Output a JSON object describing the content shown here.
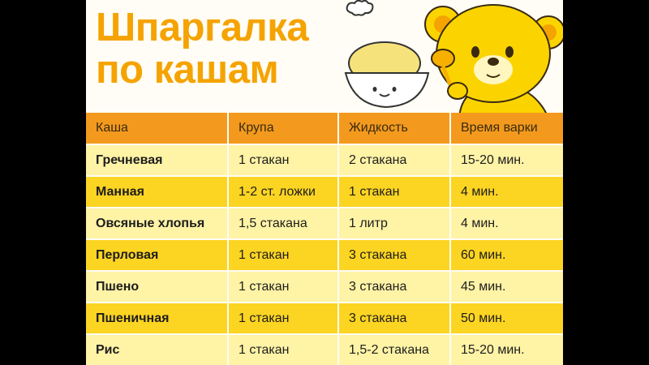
{
  "title": {
    "line1": "Шпаргалка",
    "line2": "по кашам"
  },
  "table": {
    "headers": [
      "Каша",
      "Крупа",
      "Жидкость",
      "Время варки"
    ],
    "rows": [
      [
        "Гречневая",
        "1 стакан",
        "2 стакана",
        "15-20 мин."
      ],
      [
        "Манная",
        "1-2 ст. ложки",
        "1 стакан",
        "4 мин."
      ],
      [
        "Овсяные хлопья",
        "1,5 стакана",
        "1 литр",
        "4 мин."
      ],
      [
        "Перловая",
        "1 стакан",
        "3 стакана",
        "60 мин."
      ],
      [
        "Пшено",
        "1 стакан",
        "3 стакана",
        "45 мин."
      ],
      [
        "Пшеничная",
        "1 стакан",
        "3 стакана",
        "50 мин."
      ],
      [
        "Рис",
        "1 стакан",
        "1,5-2 стакана",
        "15-20 мин."
      ]
    ]
  },
  "colors": {
    "title": "#f5a300",
    "header_bg": "#f39a1e",
    "row_light": "#fff3a6",
    "row_dark": "#fcd422",
    "card_bg": "#fffdf5"
  },
  "illustration": {
    "icons": [
      "bear-icon",
      "porridge-bowl-icon",
      "spoon-icon",
      "steam-cloud-icon"
    ]
  }
}
